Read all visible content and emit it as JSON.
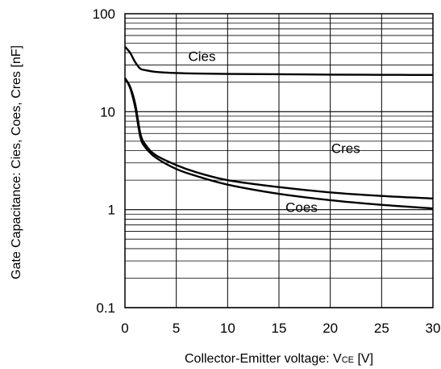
{
  "chart_data": {
    "type": "line",
    "xlabel_prefix": "Collector-Emitter voltage: V",
    "xlabel_subscript": "CE",
    "xlabel_suffix": " [V]",
    "ylabel": "Gate Capacitance: Cies, Coes, Cres [nF]",
    "xlim": [
      0,
      30
    ],
    "ylim": [
      0.1,
      100
    ],
    "y_scale": "log",
    "grid": true,
    "x_ticks": [
      0,
      5,
      10,
      15,
      20,
      25,
      30
    ],
    "x_tick_labels": [
      "0",
      "5",
      "10",
      "15",
      "20",
      "25",
      "30"
    ],
    "y_ticks": [
      0.1,
      1,
      10,
      100
    ],
    "y_tick_labels": [
      "0.1",
      "1",
      "10",
      "100"
    ],
    "series": [
      {
        "name": "Cies",
        "x": [
          0,
          0.5,
          1.0,
          1.5,
          2,
          3,
          5,
          7,
          10,
          15,
          20,
          25,
          30
        ],
        "y": [
          46,
          40,
          32,
          27.5,
          26.5,
          25.5,
          24.8,
          24.5,
          24.3,
          24.1,
          23.9,
          23.8,
          23.7
        ]
      },
      {
        "name": "Cres",
        "x": [
          0,
          0.5,
          1.0,
          1.5,
          2,
          3,
          5,
          7,
          10,
          15,
          20,
          25,
          30
        ],
        "y": [
          22,
          18,
          12,
          6,
          4.6,
          3.6,
          2.85,
          2.4,
          2.0,
          1.7,
          1.5,
          1.38,
          1.3
        ]
      },
      {
        "name": "Coes",
        "x": [
          0,
          0.5,
          1.0,
          1.5,
          2,
          3,
          5,
          7,
          10,
          15,
          20,
          25,
          30
        ],
        "y": [
          22,
          17.5,
          11,
          5.5,
          4.3,
          3.4,
          2.6,
          2.2,
          1.8,
          1.45,
          1.25,
          1.12,
          1.03
        ]
      }
    ],
    "series_labels": [
      {
        "text": "Cies",
        "x": 7.5,
        "y": 33
      },
      {
        "text": "Cres",
        "x": 21.5,
        "y": 3.8
      },
      {
        "text": "Coes",
        "x": 17.2,
        "y": 0.95
      }
    ]
  }
}
